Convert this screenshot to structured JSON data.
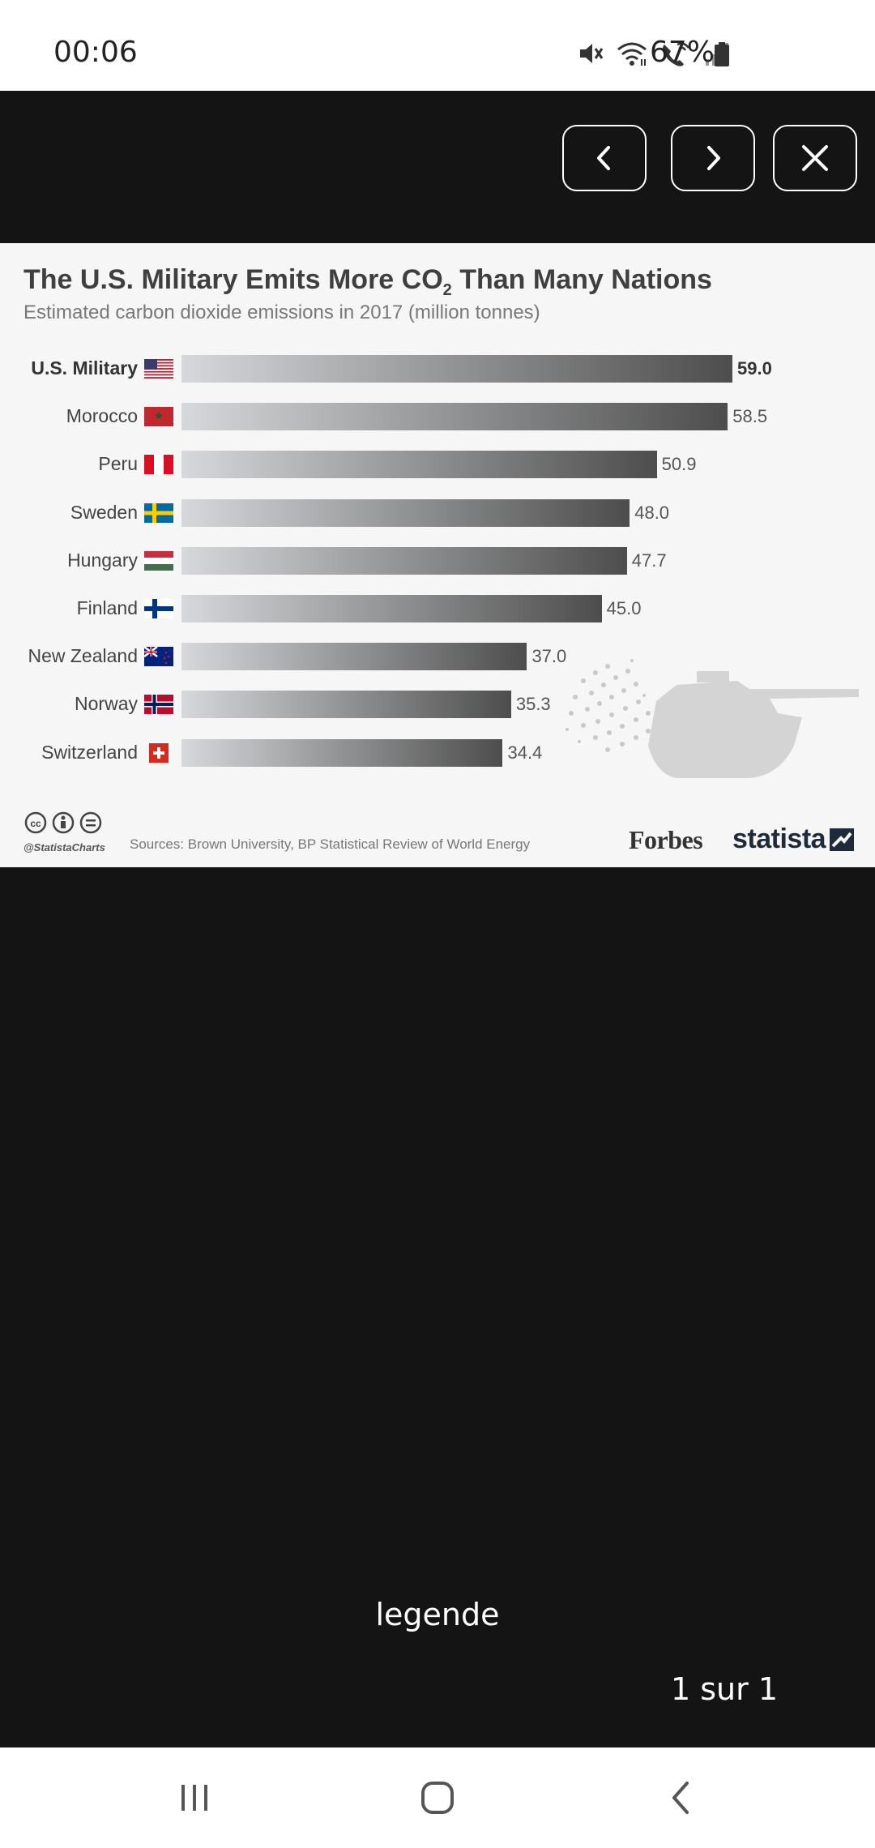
{
  "status_bar": {
    "time": "00:06",
    "battery": "67%",
    "icons": [
      "mute-icon",
      "wifi-icon",
      "wifi-call-icon",
      "signal-icon",
      "battery-icon"
    ]
  },
  "viewer": {
    "prev_icon": "chevron-left-icon",
    "next_icon": "chevron-right-icon",
    "close_icon": "close-icon",
    "caption": "legende",
    "counter": "1 sur 1"
  },
  "infographic": {
    "title_main": "The U.S. Military Emits More CO",
    "title_sub": "2",
    "title_rest": " Than Many Nations",
    "subtitle": "Estimated carbon dioxide emissions in 2017 (million tonnes)",
    "credit": "@StatistaCharts",
    "sources": "Sources: Brown University, BP Statistical Review of World Energy",
    "brand_forbes": "Forbes",
    "brand_statista": "statista"
  },
  "chart_data": {
    "type": "bar",
    "orientation": "horizontal",
    "title": "The U.S. Military Emits More CO2 Than Many Nations",
    "subtitle": "Estimated carbon dioxide emissions in 2017 (million tonnes)",
    "categories": [
      "U.S. Military",
      "Morocco",
      "Peru",
      "Sweden",
      "Hungary",
      "Finland",
      "New Zealand",
      "Norway",
      "Switzerland"
    ],
    "values": [
      59.0,
      58.5,
      50.9,
      48.0,
      47.7,
      45.0,
      37.0,
      35.3,
      34.4
    ],
    "value_labels": [
      "59.0",
      "58.5",
      "50.9",
      "48.0",
      "47.7",
      "45.0",
      "37.0",
      "35.3",
      "34.4"
    ],
    "flags": [
      "us",
      "ma",
      "pe",
      "se",
      "hu",
      "fi",
      "nz",
      "no",
      "ch"
    ],
    "xlim": [
      0,
      59.0
    ],
    "grid": false,
    "legend": "none",
    "colors": {
      "bar_start": "#d6d8db",
      "bar_end": "#4d4d4d"
    }
  },
  "nav_bar": {
    "recent_icon": "recent-apps-icon",
    "home_icon": "home-icon",
    "back_icon": "back-icon"
  }
}
